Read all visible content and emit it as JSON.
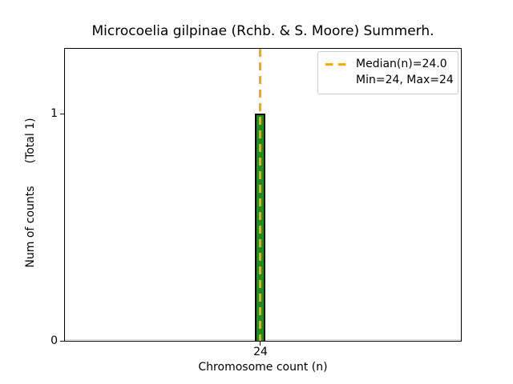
{
  "figure": {
    "title": "Microcoelia gilpinae (Rchb. & S. Moore) Summerh.",
    "xlabel": "Chromosome count (n)",
    "ylabel": "Num of counts",
    "ylabel_total": "(Total 1)",
    "x_ticks": [
      "24"
    ],
    "y_ticks": [
      "0",
      "1"
    ],
    "legend": {
      "median_label": "Median(n)=24.0",
      "minmax_label": "Min=24, Max=24"
    },
    "colors": {
      "background": "#ffffff",
      "bar_fill": "#228B22",
      "bar_edge": "#000000",
      "median_line": "#FFA500",
      "axis": "#000000",
      "text": "#000000",
      "legend_border": "#cccccc"
    }
  },
  "chart_data": {
    "type": "bar",
    "categories": [
      24
    ],
    "values": [
      1
    ],
    "title": "Microcoelia gilpinae (Rchb. & S. Moore) Summerh.",
    "xlabel": "Chromosome count (n)",
    "ylabel": "Num of counts (Total 1)",
    "xticks": [
      24
    ],
    "yticks": [
      0,
      1
    ],
    "ylim": [
      0,
      1.29
    ],
    "total_counts": 1,
    "median_n": 24.0,
    "min_n": 24,
    "max_n": 24,
    "legend_entries": [
      "Median(n)=24.0",
      "Min=24, Max=24"
    ],
    "legend_position": "upper right",
    "grid": false,
    "bar_color": "#228B22",
    "bar_edge_color": "#000000",
    "median_line_color": "#FFA500",
    "median_line_style": "dashed"
  }
}
